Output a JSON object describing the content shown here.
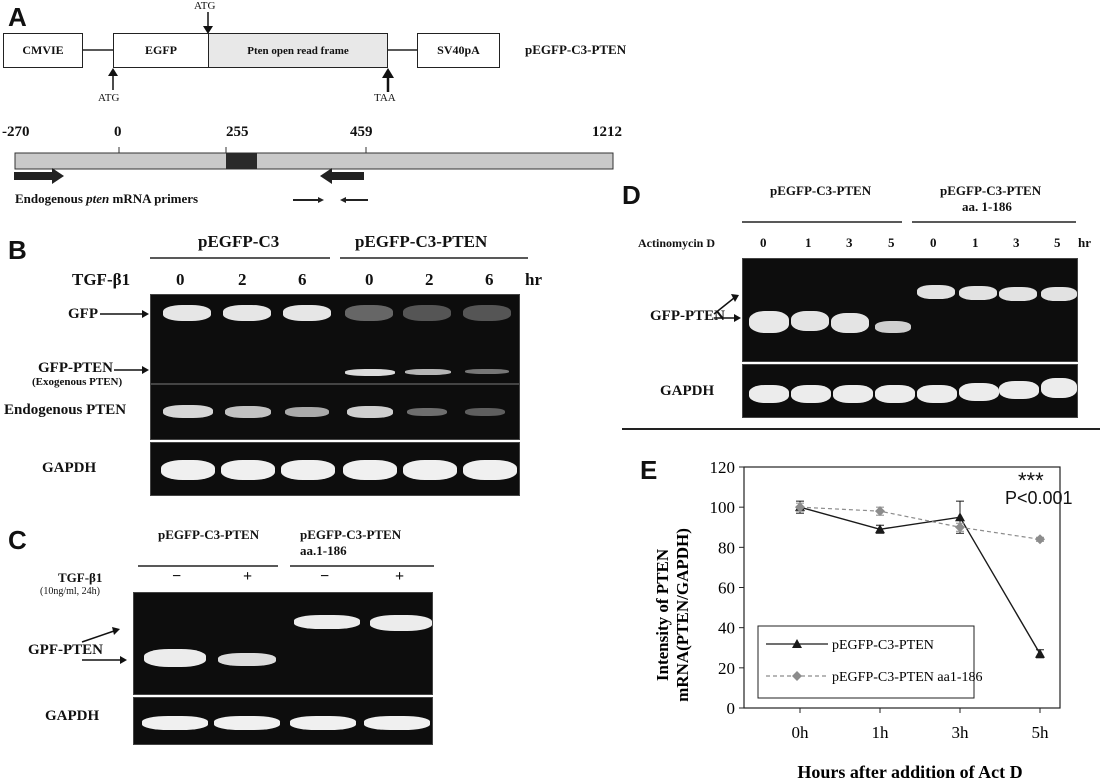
{
  "panelA": {
    "letter": "A",
    "boxes": [
      "CMVIE",
      "EGFP",
      "Pten open read frame",
      "SV40pA"
    ],
    "plasmid": "pEGFP-C3-PTEN",
    "atg_top": "ATG",
    "atg_bottom": "ATG",
    "taa": "TAA",
    "positions": [
      "-270",
      "0",
      "255",
      "459",
      "1212"
    ],
    "primer_label_pre": "Endogenous ",
    "primer_label_italic": "pten",
    "primer_label_post": " mRNA primers"
  },
  "panelB": {
    "letter": "B",
    "group1": "pEGFP-C3",
    "group2": "pEGFP-C3-PTEN",
    "treatment": "TGF-β1",
    "times": [
      "0",
      "2",
      "6",
      "0",
      "2",
      "6"
    ],
    "unit": "hr",
    "row_gfp": "GFP",
    "row_gfp_pten": "GFP-PTEN",
    "row_gfp_pten_sub": "(Exogenous PTEN)",
    "row_endo": "Endogenous PTEN",
    "row_gapdh": "GAPDH"
  },
  "panelC": {
    "letter": "C",
    "group1": "pEGFP-C3-PTEN",
    "group2_line1": "pEGFP-C3-PTEN",
    "group2_line2": "aa.1-186",
    "treatment": "TGF-β1",
    "treatment_sub": "(10ng/ml, 24h)",
    "signs": [
      "−",
      "+",
      "−",
      "+"
    ],
    "row_gpf": "GPF-PTEN",
    "row_gapdh": "GAPDH"
  },
  "panelD": {
    "letter": "D",
    "group1": "pEGFP-C3-PTEN",
    "group2_line1": "pEGFP-C3-PTEN",
    "group2_line2": "aa. 1-186",
    "treatment": "Actinomycin  D",
    "times": [
      "0",
      "1",
      "3",
      "5",
      "0",
      "1",
      "3",
      "5"
    ],
    "unit": "hr",
    "row_gfp_pten": "GFP-PTEN",
    "row_gapdh": "GAPDH"
  },
  "panelE": {
    "letter": "E",
    "significance": "***",
    "pvalue": "P<0.001",
    "ylabel_line1": "Intensity of  PTEN",
    "ylabel_line2": "mRNA(PTEN/GAPDH)",
    "xlabel": "Hours after addition of Act D"
  },
  "chart_data": {
    "type": "line",
    "categories": [
      "0h",
      "1h",
      "3h",
      "5h"
    ],
    "ylim": [
      0,
      120
    ],
    "yticks": [
      0,
      20,
      40,
      60,
      80,
      100,
      120
    ],
    "grid": false,
    "legend_position": "bottom-left",
    "series": [
      {
        "name": "pEGFP-C3-PTEN",
        "values": [
          100,
          89,
          95,
          27
        ],
        "errors": [
          3,
          2,
          8,
          2
        ],
        "style": "solid",
        "marker": "triangle",
        "color": "#1a1a1a"
      },
      {
        "name": "pEGFP-C3-PTEN aa1-186",
        "values": [
          100,
          98,
          90,
          84
        ],
        "errors": [
          2,
          2,
          2,
          1
        ],
        "style": "dashed",
        "marker": "diamond",
        "color": "#8c8c8c"
      }
    ],
    "xlabel": "Hours after addition of Act D",
    "ylabel": "Intensity of  PTEN mRNA(PTEN/GAPDH)"
  }
}
